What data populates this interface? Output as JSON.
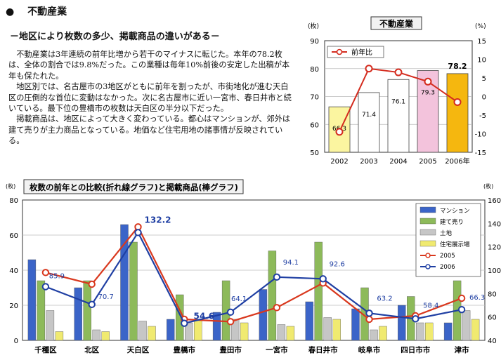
{
  "section": {
    "bullet": "●",
    "title": "不動産業"
  },
  "subtitle": "－地区により枚数の多少、掲載商品の違いがある－",
  "paragraphs": [
    "不動産業は3年連続の前年比増から若干のマイナスに転じた。本年の78.2枚は、全体の割合では9.8%だった。この業種は毎年10%前後の安定した出稿が本年も保たれた。",
    "地区別では、名古屋市の3地区がともに前年を割ったが、市街地化が進む天白区の圧倒的な首位に変動はなかった。次に名古屋市に近い一宮市、春日井市と続いている。最下位の豊橋市の枚数は天白区の半分以下だった。",
    "掲載商品は、地区によって大きく変わっている。都心はマンションが、郊外は建て売りが主力商品となっている。地価など住宅用地の諸事情が反映されている。"
  ],
  "chart_data": [
    {
      "type": "bar",
      "title": "不動産業",
      "categories": [
        "2002",
        "2003",
        "2004",
        "2005",
        "2006年"
      ],
      "values": [
        66.3,
        71.4,
        76.1,
        79.3,
        78.2
      ],
      "bar_colors": [
        "#fbf5a0",
        "#ffffff",
        "#ffffff",
        "#f3c3dc",
        "#f5b70f"
      ],
      "ylabel_left": "(枚)",
      "ylim_left": [
        50,
        90
      ],
      "left_ticks": [
        50,
        60,
        70,
        80,
        90
      ],
      "ylabel_right": "(%)",
      "ylim_right": [
        -15,
        15
      ],
      "right_ticks": [
        15,
        10,
        5,
        0,
        -5,
        -10,
        -15
      ],
      "line_series": {
        "name": "前年比",
        "values": [
          -9.5,
          7.5,
          6.5,
          4.0,
          -1.5
        ],
        "color": "#d42b1e"
      },
      "grid": true
    },
    {
      "type": "bar",
      "title": "枚数の前年との比較(折れ線グラフ)と掲載商品(棒グラフ)",
      "categories": [
        "千種区",
        "北区",
        "天白区",
        "豊橋市",
        "豊田市",
        "一宮市",
        "春日井市",
        "岐阜市",
        "四日市市",
        "津市"
      ],
      "ylabel_left": "(枚)",
      "ylim_left": [
        0,
        80
      ],
      "left_ticks": [
        0,
        20,
        40,
        60,
        80
      ],
      "ylabel_right": "(枚)",
      "ylim_right": [
        40,
        160
      ],
      "right_ticks": [
        40,
        60,
        80,
        100,
        120,
        140,
        160
      ],
      "series": [
        {
          "name": "マンション",
          "color": "#3b64c8",
          "values": [
            46,
            30,
            66,
            12,
            16,
            29,
            22,
            18,
            20,
            10
          ]
        },
        {
          "name": "建て売り",
          "color": "#8dba5a",
          "values": [
            34,
            34,
            56,
            26,
            34,
            51,
            56,
            30,
            25,
            34
          ]
        },
        {
          "name": "土地",
          "color": "#c6c6c6",
          "values": [
            17,
            6,
            11,
            10,
            12,
            9,
            13,
            6,
            10,
            17
          ]
        },
        {
          "name": "住宅展示場",
          "color": "#f0ea70",
          "values": [
            5,
            5,
            8,
            12,
            10,
            8,
            12,
            8,
            10,
            12
          ]
        }
      ],
      "lines": [
        {
          "name": "2005",
          "color": "#d9381e",
          "values": [
            98,
            88,
            137,
            58,
            56,
            68,
            89,
            58,
            61,
            76
          ]
        },
        {
          "name": "2006",
          "color": "#1f3fa3",
          "values": [
            85.9,
            70.7,
            132.2,
            54.6,
            64.1,
            94.1,
            92.6,
            63.2,
            58.4,
            66.3
          ]
        }
      ],
      "labels_2006": [
        "85.9",
        "70.7",
        "132.2",
        "54.6",
        "64.1",
        "94.1",
        "92.6",
        "63.2",
        "58.4",
        "66.3"
      ],
      "grid": true,
      "legend_position": "top-right"
    }
  ]
}
